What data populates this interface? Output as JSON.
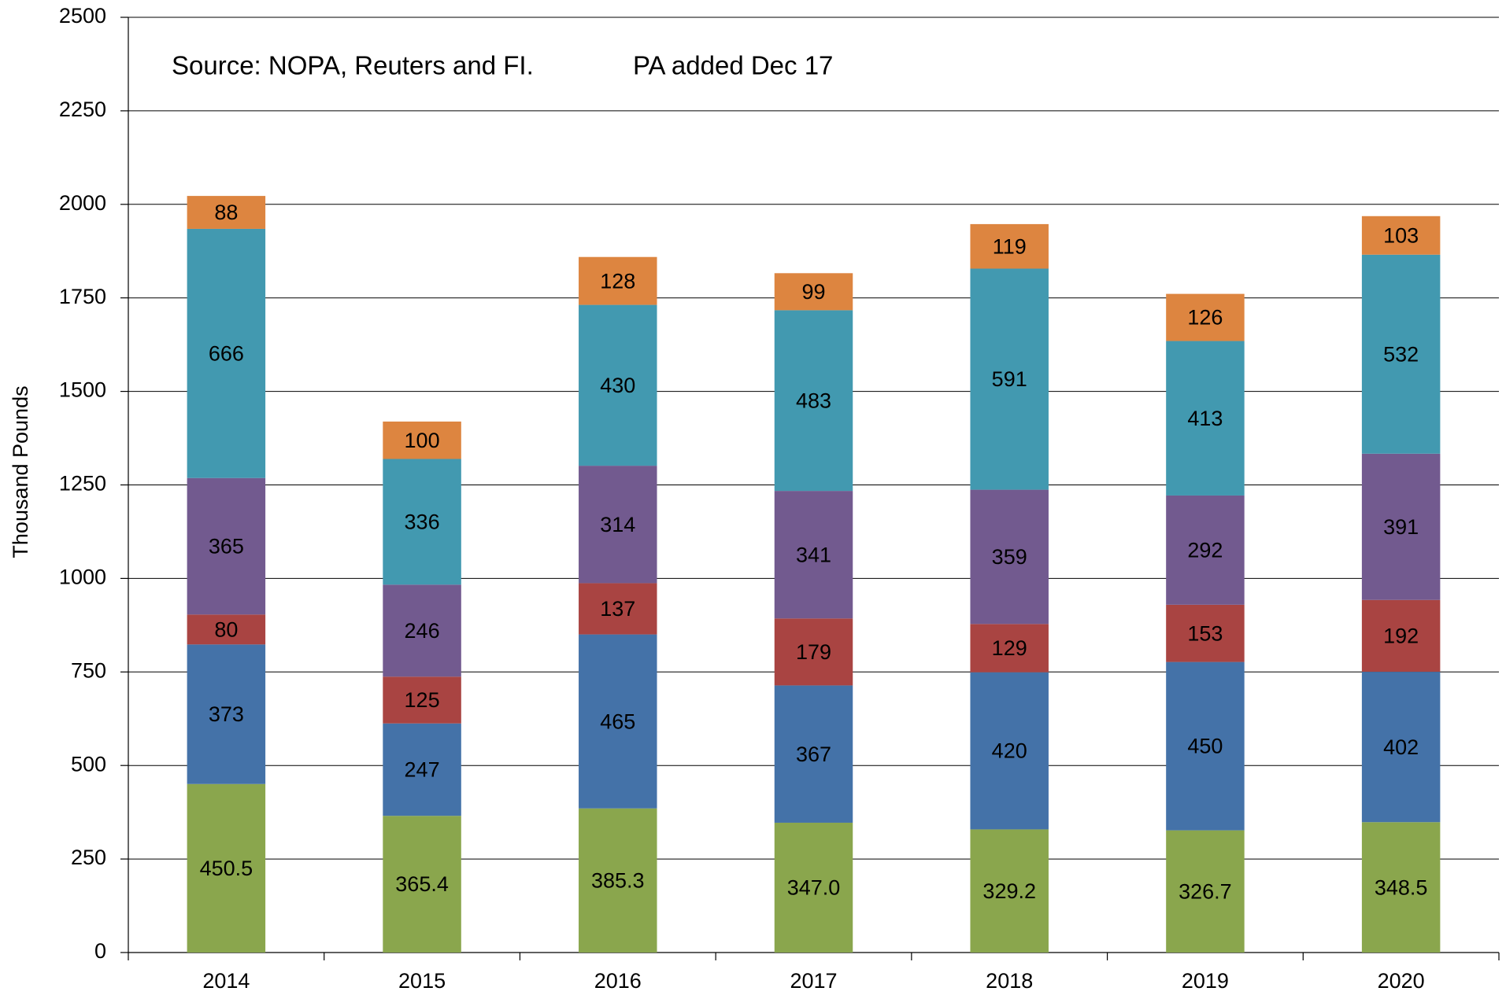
{
  "chart_data": {
    "type": "stacked_bar",
    "annotations": [
      "Source: NOPA, Reuters and FI.",
      "PA added Dec 17"
    ],
    "ylabel": "Thousand Pounds",
    "categories": [
      "2014",
      "2015",
      "2016",
      "2017",
      "2018",
      "2019",
      "2020"
    ],
    "series": [
      {
        "color": "#8aa64d",
        "values": [
          450.5,
          365.4,
          385.3,
          347.0,
          329.2,
          326.7,
          348.5
        ],
        "value_labels": [
          "450.5",
          "365.4",
          "385.3",
          "347.0",
          "329.2",
          "326.7",
          "348.5"
        ]
      },
      {
        "color": "#4472a8",
        "values": [
          373,
          247,
          465,
          367,
          420,
          450,
          402
        ]
      },
      {
        "color": "#a94442",
        "values": [
          80,
          125,
          137,
          179,
          129,
          153,
          192
        ]
      },
      {
        "color": "#725a8f",
        "values": [
          365,
          246,
          314,
          341,
          359,
          292,
          391
        ]
      },
      {
        "color": "#4299b0",
        "values": [
          666,
          336,
          430,
          483,
          591,
          413,
          532
        ]
      },
      {
        "color": "#dd8540",
        "values": [
          88,
          100,
          128,
          99,
          119,
          126,
          103
        ]
      }
    ],
    "ylim": [
      0,
      2500
    ],
    "yticks": [
      0,
      250,
      500,
      750,
      1000,
      1250,
      1500,
      1750,
      2000,
      2250,
      2500
    ],
    "grid": true
  }
}
